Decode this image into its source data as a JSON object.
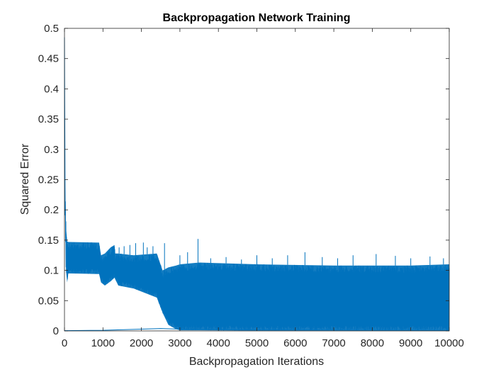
{
  "chart_data": {
    "type": "line",
    "title": "Backpropagation Network Training",
    "xlabel": "Backpropagation Iterations",
    "ylabel": "Squared Error",
    "xlim": [
      0,
      10000
    ],
    "ylim": [
      0,
      0.5
    ],
    "xticks": [
      0,
      1000,
      2000,
      3000,
      4000,
      5000,
      6000,
      7000,
      8000,
      9000,
      10000
    ],
    "yticks": [
      0,
      0.05,
      0.1,
      0.15,
      0.2,
      0.25,
      0.3,
      0.35,
      0.4,
      0.45,
      0.5
    ],
    "xtick_labels": [
      "0",
      "1000",
      "2000",
      "3000",
      "4000",
      "5000",
      "6000",
      "7000",
      "8000",
      "9000",
      "10000"
    ],
    "ytick_labels": [
      "0",
      "0.05",
      "0.1",
      "0.15",
      "0.2",
      "0.25",
      "0.3",
      "0.35",
      "0.4",
      "0.45",
      "0.5"
    ],
    "grid": false,
    "line_color": "#0072BD",
    "series": [
      {
        "envelope": {
          "x": [
            0,
            15,
            40,
            70,
            100,
            900,
            950,
            1050,
            1200,
            1300,
            1320,
            1400,
            1800,
            2400,
            2550,
            2700,
            2900,
            3000,
            3500,
            5000,
            7000,
            9000,
            10000
          ],
          "upper": [
            0.485,
            0.25,
            0.17,
            0.148,
            0.147,
            0.146,
            0.125,
            0.128,
            0.138,
            0.142,
            0.128,
            0.128,
            0.125,
            0.128,
            0.1,
            0.105,
            0.108,
            0.11,
            0.113,
            0.11,
            0.108,
            0.108,
            0.11
          ],
          "lower": [
            0.48,
            0.2,
            0.1,
            0.08,
            0.095,
            0.094,
            0.08,
            0.075,
            0.082,
            0.088,
            0.085,
            0.075,
            0.07,
            0.055,
            0.03,
            0.01,
            0.003,
            0.001,
            0.001,
            0.0005,
            0.0005,
            0.0005,
            0.0005
          ]
        },
        "spikes": [
          [
            1420,
            0.138
          ],
          [
            1550,
            0.14
          ],
          [
            1700,
            0.142
          ],
          [
            1850,
            0.145
          ],
          [
            2050,
            0.146
          ],
          [
            2150,
            0.138
          ],
          [
            2300,
            0.14
          ],
          [
            2600,
            0.145
          ],
          [
            3000,
            0.125
          ],
          [
            3200,
            0.13
          ],
          [
            3470,
            0.152
          ],
          [
            3800,
            0.12
          ],
          [
            4200,
            0.122
          ],
          [
            4600,
            0.118
          ],
          [
            5000,
            0.125
          ],
          [
            5400,
            0.12
          ],
          [
            5800,
            0.125
          ],
          [
            6250,
            0.13
          ],
          [
            6700,
            0.122
          ],
          [
            7100,
            0.12
          ],
          [
            7500,
            0.125
          ],
          [
            8100,
            0.127
          ],
          [
            8600,
            0.124
          ],
          [
            9000,
            0.12
          ],
          [
            9500,
            0.123
          ],
          [
            9850,
            0.12
          ]
        ],
        "baseline": {
          "x": [
            0,
            1000,
            2000,
            2500,
            3000,
            4000,
            6000,
            8000,
            10000
          ],
          "y": [
            0.0005,
            0.001,
            0.003,
            0.004,
            0.003,
            0.002,
            0.0015,
            0.001,
            0.0008
          ]
        }
      }
    ]
  }
}
